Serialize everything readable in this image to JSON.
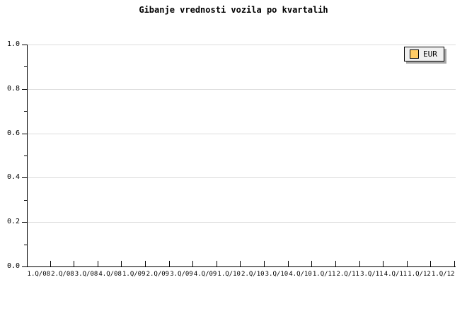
{
  "chart_data": {
    "type": "line",
    "title": "Gibanje vrednosti vozila po kvartalih",
    "categories": [
      "1.Q/08",
      "2.Q/08",
      "3.Q/08",
      "4.Q/08",
      "1.Q/09",
      "2.Q/09",
      "3.Q/09",
      "4.Q/09",
      "1.Q/10",
      "2.Q/10",
      "3.Q/10",
      "4.Q/10",
      "1.Q/11",
      "2.Q/11",
      "3.Q/11",
      "4.Q/11",
      "1.Q/12",
      "1.Q/12"
    ],
    "series": [
      {
        "name": "EUR",
        "color": "#FFCC66",
        "values": []
      }
    ],
    "ylim": [
      0.0,
      1.0
    ],
    "ytick_labels": [
      "0.0",
      "0.2",
      "0.4",
      "0.6",
      "0.8",
      "1.0"
    ],
    "ytick_step_major": 0.2,
    "ytick_step_minor": 0.1,
    "grid": "horizontal gridlines at major y ticks",
    "legend_position": "top-right"
  },
  "legend": {
    "items": [
      {
        "label": "EUR",
        "swatch_color": "#FFCC66"
      }
    ]
  },
  "colors": {
    "background": "#ffffff",
    "grid": "#dcdcdc",
    "axis": "#000000",
    "text": "#000000",
    "legend_bg": "#f0f0f0",
    "legend_shadow": "#a6a6a6",
    "series_eur": "#FFCC66"
  }
}
